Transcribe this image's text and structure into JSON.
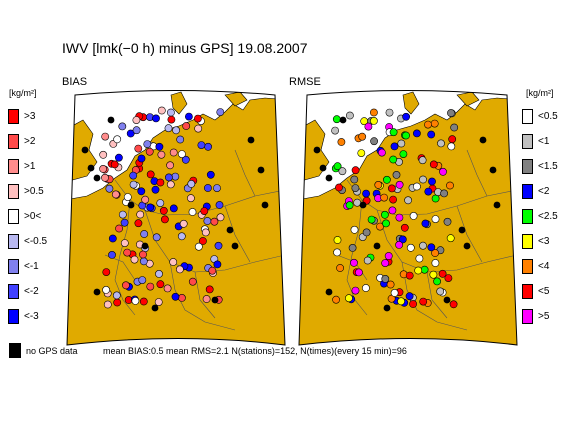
{
  "title": "IWV [lmk(−0 h) minus GPS] 19.08.2007",
  "panels": {
    "left": "BIAS",
    "right": "RMSE"
  },
  "unit_label": "[kg/m²]",
  "colors": {
    "land": "#e0aa00",
    "sea": "#ffffff",
    "border": "#555555"
  },
  "bias_legend": [
    {
      "label": ">3",
      "color": "#ff0000"
    },
    {
      "label": ">2",
      "color": "#ff4a4a"
    },
    {
      "label": ">1",
      "color": "#ff8c8c"
    },
    {
      "label": ">0.5",
      "color": "#ffc0c0"
    },
    {
      "label": ">0<",
      "color": "#ffffff"
    },
    {
      "label": "<-0.5",
      "color": "#b8b8f0"
    },
    {
      "label": "<-1",
      "color": "#8080ee"
    },
    {
      "label": "<-2",
      "color": "#4040ff"
    },
    {
      "label": "<-3",
      "color": "#0000ff"
    }
  ],
  "rmse_legend": [
    {
      "label": "<0.5",
      "color": "#ffffff"
    },
    {
      "label": "<1",
      "color": "#c0c0c0"
    },
    {
      "label": "<1.5",
      "color": "#808080"
    },
    {
      "label": "<2",
      "color": "#0000ff"
    },
    {
      "label": "<2.5",
      "color": "#00ff00"
    },
    {
      "label": "<3",
      "color": "#ffff00"
    },
    {
      "label": "<4",
      "color": "#ff8000"
    },
    {
      "label": "<5",
      "color": "#ff0000"
    },
    {
      "label": ">5",
      "color": "#ff00ff"
    }
  ],
  "nogps": {
    "label": "no GPS data",
    "color": "#000000"
  },
  "stats": "mean BIAS:0.5  mean RMS=2.1  N(stations)=152, N(times)(every 15 min)=96"
}
